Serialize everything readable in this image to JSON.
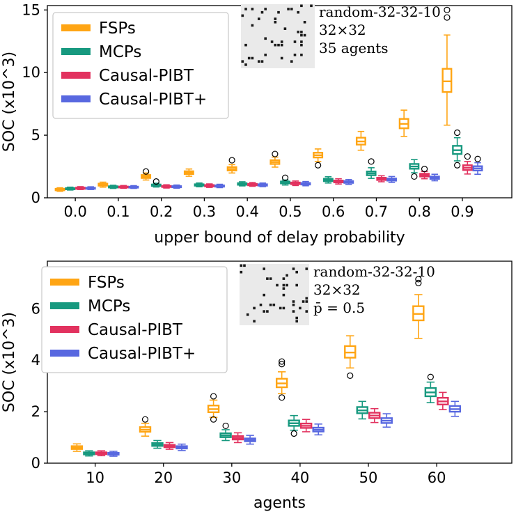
{
  "chart_data": [
    {
      "type": "boxplot",
      "title": "",
      "xlabel": "upper bound of delay probability",
      "ylabel": "SOC (x10^3)",
      "unit": "x10^3",
      "x_ticks": [
        0.0,
        0.1,
        0.2,
        0.3,
        0.4,
        0.5,
        0.6,
        0.7,
        0.8,
        0.9
      ],
      "x_tick_labels": [
        "0.0",
        "0.1",
        "0.2",
        "0.3",
        "0.4",
        "0.5",
        "0.6",
        "0.7",
        "0.8",
        "0.9"
      ],
      "xlim": [
        -0.065,
        1.015
      ],
      "y_ticks": [
        0,
        5,
        10,
        15
      ],
      "y_tick_labels": [
        "0",
        "5",
        "10",
        "15"
      ],
      "ylim": [
        0,
        15.35
      ],
      "grid": false,
      "legend_position": "upper left",
      "annotation": [
        "random-32-32-10",
        "32×32",
        "35 agents"
      ],
      "box_value_format": [
        "median",
        "q1",
        "q3",
        "whisker_low",
        "whisker_high",
        "outliers"
      ],
      "legend": [
        {
          "label": "FSPs",
          "color": "#ffa514"
        },
        {
          "label": "MCPs",
          "color": "#17997f"
        },
        {
          "label": "Causal-PIBT",
          "color": "#e2325f"
        },
        {
          "label": "Causal-PIBT+",
          "color": "#5868e0"
        }
      ],
      "series": [
        {
          "name": "FSPs",
          "color": "#ffa514",
          "boxes": [
            [
              0.65,
              0.6,
              0.72,
              0.52,
              0.8,
              []
            ],
            [
              1.05,
              0.97,
              1.13,
              0.85,
              1.25,
              []
            ],
            [
              1.7,
              1.58,
              1.82,
              1.42,
              1.98,
              [
                2.1
              ]
            ],
            [
              2.0,
              1.9,
              2.12,
              1.72,
              2.3,
              []
            ],
            [
              2.3,
              2.18,
              2.45,
              1.98,
              2.65,
              [
                3.0
              ]
            ],
            [
              2.85,
              2.7,
              3.0,
              2.45,
              3.25,
              [
                3.5
              ]
            ],
            [
              3.4,
              3.22,
              3.6,
              2.9,
              3.9,
              [
                2.6
              ]
            ],
            [
              4.5,
              4.25,
              4.8,
              3.8,
              5.3,
              []
            ],
            [
              5.9,
              5.55,
              6.3,
              4.9,
              7.0,
              []
            ],
            [
              9.3,
              8.45,
              10.3,
              5.8,
              13.0,
              [
                15.0,
                14.4
              ]
            ]
          ]
        },
        {
          "name": "MCPs",
          "color": "#17997f",
          "boxes": [
            [
              0.72,
              0.68,
              0.77,
              0.62,
              0.85,
              []
            ],
            [
              0.86,
              0.82,
              0.92,
              0.75,
              1.0,
              []
            ],
            [
              1.0,
              0.95,
              1.06,
              0.86,
              1.16,
              [
                1.3
              ]
            ],
            [
              1.02,
              0.97,
              1.08,
              0.88,
              1.18,
              []
            ],
            [
              1.1,
              1.04,
              1.17,
              0.95,
              1.28,
              []
            ],
            [
              1.22,
              1.15,
              1.3,
              1.02,
              1.42,
              [
                1.6
              ]
            ],
            [
              1.42,
              1.33,
              1.52,
              1.18,
              1.68,
              []
            ],
            [
              1.95,
              1.8,
              2.1,
              1.55,
              2.4,
              [
                2.9
              ]
            ],
            [
              2.5,
              2.32,
              2.7,
              2.0,
              3.05,
              [
                1.7
              ]
            ],
            [
              3.8,
              3.5,
              4.15,
              2.95,
              4.8,
              [
                5.2,
                2.6
              ]
            ]
          ]
        },
        {
          "name": "Causal-PIBT",
          "color": "#e2325f",
          "boxes": [
            [
              0.76,
              0.72,
              0.81,
              0.66,
              0.89,
              []
            ],
            [
              0.86,
              0.82,
              0.9,
              0.76,
              0.98,
              []
            ],
            [
              0.9,
              0.86,
              0.95,
              0.78,
              1.04,
              []
            ],
            [
              0.96,
              0.91,
              1.02,
              0.83,
              1.11,
              []
            ],
            [
              1.05,
              1.0,
              1.11,
              0.92,
              1.22,
              []
            ],
            [
              1.15,
              1.09,
              1.22,
              0.98,
              1.34,
              []
            ],
            [
              1.3,
              1.23,
              1.38,
              1.1,
              1.52,
              []
            ],
            [
              1.5,
              1.42,
              1.6,
              1.28,
              1.76,
              []
            ],
            [
              1.8,
              1.7,
              1.92,
              1.52,
              2.1,
              [
                2.3
              ]
            ],
            [
              2.4,
              2.22,
              2.6,
              1.9,
              2.9,
              [
                3.3
              ]
            ]
          ]
        },
        {
          "name": "Causal-PIBT+",
          "color": "#5868e0",
          "boxes": [
            [
              0.76,
              0.72,
              0.8,
              0.66,
              0.88,
              []
            ],
            [
              0.85,
              0.81,
              0.89,
              0.75,
              0.97,
              []
            ],
            [
              0.88,
              0.84,
              0.93,
              0.77,
              1.02,
              []
            ],
            [
              0.94,
              0.89,
              0.99,
              0.81,
              1.08,
              []
            ],
            [
              1.02,
              0.97,
              1.08,
              0.89,
              1.18,
              []
            ],
            [
              1.12,
              1.06,
              1.18,
              0.96,
              1.3,
              []
            ],
            [
              1.26,
              1.19,
              1.33,
              1.07,
              1.46,
              []
            ],
            [
              1.45,
              1.37,
              1.54,
              1.23,
              1.7,
              []
            ],
            [
              1.6,
              1.51,
              1.7,
              1.36,
              1.88,
              []
            ],
            [
              2.35,
              2.18,
              2.52,
              1.88,
              2.8,
              [
                3.1
              ]
            ]
          ]
        }
      ]
    },
    {
      "type": "boxplot",
      "title": "",
      "xlabel": "agents",
      "ylabel": "SOC (x10^3)",
      "unit": "x10^3",
      "x_ticks": [
        10,
        20,
        30,
        40,
        50,
        60
      ],
      "x_tick_labels": [
        "10",
        "20",
        "30",
        "40",
        "50",
        "60"
      ],
      "xlim": [
        3,
        71
      ],
      "y_ticks": [
        0,
        2,
        4,
        6
      ],
      "y_tick_labels": [
        "0",
        "2",
        "4",
        "6"
      ],
      "ylim": [
        0,
        7.85
      ],
      "grid": false,
      "legend_position": "upper left",
      "annotation": [
        "random-32-32-10",
        "32×32",
        "p̄ = 0.5"
      ],
      "box_value_format": [
        "median",
        "q1",
        "q3",
        "whisker_low",
        "whisker_high",
        "outliers"
      ],
      "legend": [
        {
          "label": "FSPs",
          "color": "#ffa514"
        },
        {
          "label": "MCPs",
          "color": "#17997f"
        },
        {
          "label": "Causal-PIBT",
          "color": "#e2325f"
        },
        {
          "label": "Causal-PIBT+",
          "color": "#5868e0"
        }
      ],
      "series": [
        {
          "name": "FSPs",
          "color": "#ffa514",
          "boxes": [
            [
              0.6,
              0.55,
              0.66,
              0.46,
              0.75,
              []
            ],
            [
              1.3,
              1.22,
              1.4,
              1.05,
              1.55,
              [
                1.7
              ]
            ],
            [
              2.1,
              1.98,
              2.24,
              1.78,
              2.45,
              [
                2.6,
                1.7
              ]
            ],
            [
              3.1,
              2.95,
              3.28,
              2.7,
              3.55,
              [
                3.85,
                3.95,
                2.55
              ]
            ],
            [
              4.3,
              4.1,
              4.55,
              3.7,
              4.95,
              [
                3.4
              ]
            ],
            [
              5.8,
              5.55,
              6.1,
              4.85,
              6.55,
              [
                7.0,
                7.15
              ]
            ]
          ]
        },
        {
          "name": "MCPs",
          "color": "#17997f",
          "boxes": [
            [
              0.38,
              0.34,
              0.42,
              0.28,
              0.48,
              []
            ],
            [
              0.72,
              0.67,
              0.78,
              0.58,
              0.88,
              []
            ],
            [
              1.08,
              1.01,
              1.16,
              0.88,
              1.3,
              [
                1.45
              ]
            ],
            [
              1.55,
              1.45,
              1.66,
              1.28,
              1.85,
              [
                1.15
              ]
            ],
            [
              2.05,
              1.94,
              2.18,
              1.72,
              2.4,
              []
            ],
            [
              2.75,
              2.6,
              2.92,
              2.35,
              3.15,
              [
                3.35
              ]
            ]
          ]
        },
        {
          "name": "Causal-PIBT",
          "color": "#e2325f",
          "boxes": [
            [
              0.38,
              0.35,
              0.42,
              0.29,
              0.48,
              []
            ],
            [
              0.66,
              0.62,
              0.71,
              0.54,
              0.8,
              []
            ],
            [
              0.98,
              0.92,
              1.05,
              0.8,
              1.18,
              []
            ],
            [
              1.45,
              1.37,
              1.54,
              1.22,
              1.7,
              []
            ],
            [
              1.85,
              1.75,
              1.96,
              1.58,
              2.12,
              []
            ],
            [
              2.4,
              2.28,
              2.54,
              2.08,
              2.75,
              []
            ]
          ]
        },
        {
          "name": "Causal-PIBT+",
          "color": "#5868e0",
          "boxes": [
            [
              0.36,
              0.33,
              0.4,
              0.27,
              0.46,
              []
            ],
            [
              0.61,
              0.57,
              0.66,
              0.49,
              0.74,
              []
            ],
            [
              0.9,
              0.85,
              0.96,
              0.74,
              1.08,
              []
            ],
            [
              1.3,
              1.23,
              1.38,
              1.1,
              1.52,
              []
            ],
            [
              1.65,
              1.56,
              1.75,
              1.4,
              1.92,
              []
            ],
            [
              2.1,
              2.0,
              2.22,
              1.82,
              2.4,
              []
            ]
          ]
        }
      ]
    }
  ]
}
